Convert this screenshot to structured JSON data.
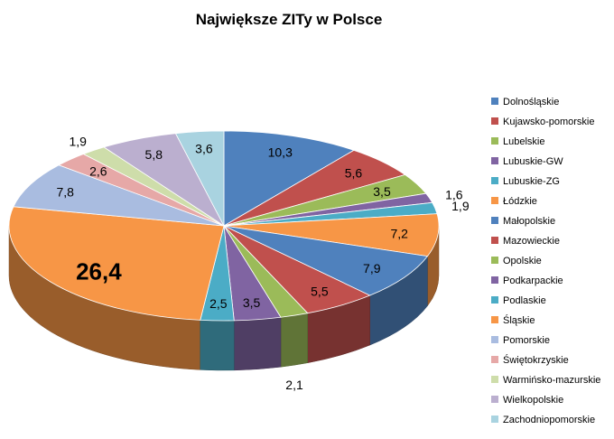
{
  "chart_data": {
    "type": "pie",
    "title": "Największe ZITy w Polsce",
    "legend_position": "right",
    "slices": [
      {
        "label": "Dolnośląskie",
        "value": 10.3,
        "value_label": "10,3",
        "color": "#4F81BD"
      },
      {
        "label": "Kujawsko-pomorskie",
        "value": 5.6,
        "value_label": "5,6",
        "color": "#C0504D"
      },
      {
        "label": "Lubelskie",
        "value": 3.5,
        "value_label": "3,5",
        "color": "#9BBB59"
      },
      {
        "label": "Lubuskie-GW",
        "value": 1.6,
        "value_label": "1,6",
        "color": "#8064A2"
      },
      {
        "label": "Lubuskie-ZG",
        "value": 1.9,
        "value_label": "1,9",
        "color": "#4BACC6"
      },
      {
        "label": "Łódzkie",
        "value": 7.2,
        "value_label": "7,2",
        "color": "#F79646"
      },
      {
        "label": "Małopolskie",
        "value": 7.9,
        "value_label": "7,9",
        "color": "#4F81BD"
      },
      {
        "label": "Mazowieckie",
        "value": 5.5,
        "value_label": "5,5",
        "color": "#C0504D"
      },
      {
        "label": "Opolskie",
        "value": 2.1,
        "value_label": "2,1",
        "color": "#9BBB59"
      },
      {
        "label": "Podkarpackie",
        "value": 3.5,
        "value_label": "3,5",
        "color": "#8064A2"
      },
      {
        "label": "Podlaskie",
        "value": 2.5,
        "value_label": "2,5",
        "color": "#4BACC6"
      },
      {
        "label": "Śląskie",
        "value": 26.4,
        "value_label": "26,4",
        "color": "#F79646"
      },
      {
        "label": "Pomorskie",
        "value": 7.8,
        "value_label": "7,8",
        "color": "#A9BCE0"
      },
      {
        "label": "Świętokrzyskie",
        "value": 2.6,
        "value_label": "2,6",
        "color": "#E6A8A7"
      },
      {
        "label": "Warmińsko-mazurskie",
        "value": 1.9,
        "value_label": "1,9",
        "color": "#CEDDAA"
      },
      {
        "label": "Wielkopolskie",
        "value": 5.8,
        "value_label": "5,8",
        "color": "#BBAFCF"
      },
      {
        "label": "Zachodniopomorskie",
        "value": 3.6,
        "value_label": "3,6",
        "color": "#A9D3E0"
      }
    ]
  }
}
